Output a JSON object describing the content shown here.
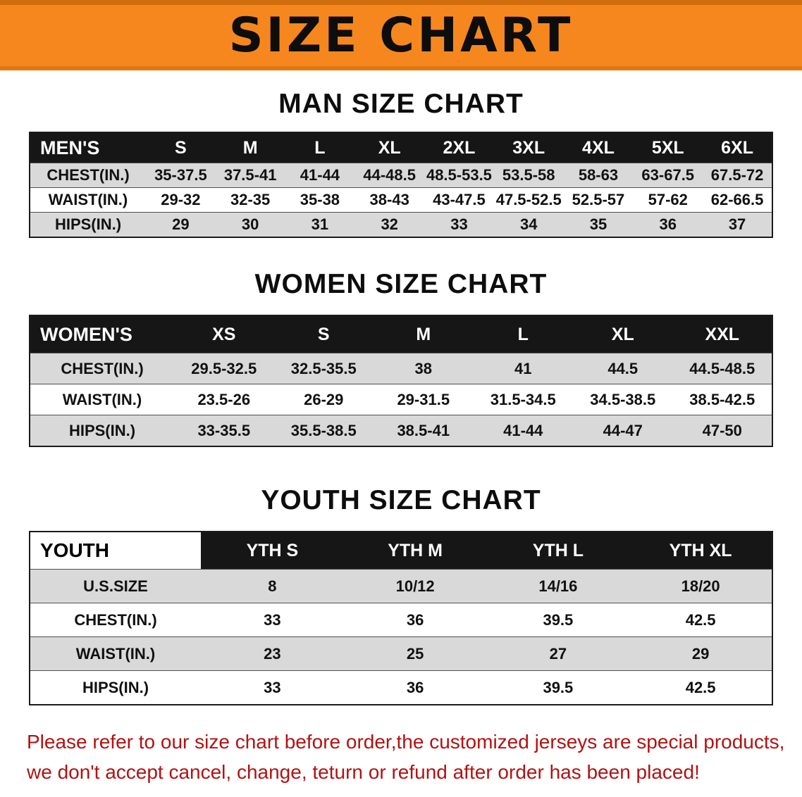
{
  "banner": {
    "title": "SIZE CHART"
  },
  "colors": {
    "banner_orange": "#f6871f",
    "table_header_black": "#161616",
    "row_gray": "#d9d9d9",
    "notice_red": "#b31212"
  },
  "sections": [
    {
      "heading": "MAN SIZE CHART",
      "table": {
        "header": [
          "MEN'S",
          "S",
          "M",
          "L",
          "XL",
          "2XL",
          "3XL",
          "4XL",
          "5XL",
          "6XL"
        ],
        "rows": [
          [
            "CHEST(IN.)",
            "35-37.5",
            "37.5-41",
            "41-44",
            "44-48.5",
            "48.5-53.5",
            "53.5-58",
            "58-63",
            "63-67.5",
            "67.5-72"
          ],
          [
            "WAIST(IN.)",
            "29-32",
            "32-35",
            "35-38",
            "38-43",
            "43-47.5",
            "47.5-52.5",
            "52.5-57",
            "57-62",
            "62-66.5"
          ],
          [
            "HIPS(IN.)",
            "29",
            "30",
            "31",
            "32",
            "33",
            "34",
            "35",
            "36",
            "37"
          ]
        ]
      }
    },
    {
      "heading": "WOMEN SIZE CHART",
      "table": {
        "header": [
          "WOMEN'S",
          "XS",
          "S",
          "M",
          "L",
          "XL",
          "XXL"
        ],
        "rows": [
          [
            "CHEST(IN.)",
            "29.5-32.5",
            "32.5-35.5",
            "38",
            "41",
            "44.5",
            "44.5-48.5"
          ],
          [
            "WAIST(IN.)",
            "23.5-26",
            "26-29",
            "29-31.5",
            "31.5-34.5",
            "34.5-38.5",
            "38.5-42.5"
          ],
          [
            "HIPS(IN.)",
            "33-35.5",
            "35.5-38.5",
            "38.5-41",
            "41-44",
            "44-47",
            "47-50"
          ]
        ]
      }
    },
    {
      "heading": "YOUTH SIZE CHART",
      "table": {
        "header": [
          "YOUTH",
          "YTH S",
          "YTH M",
          "YTH L",
          "YTH XL"
        ],
        "rows": [
          [
            "U.S.SIZE",
            "8",
            "10/12",
            "14/16",
            "18/20"
          ],
          [
            "CHEST(IN.)",
            "33",
            "36",
            "39.5",
            "42.5"
          ],
          [
            "WAIST(IN.)",
            "23",
            "25",
            "27",
            "29"
          ],
          [
            "HIPS(IN.)",
            "33",
            "36",
            "39.5",
            "42.5"
          ]
        ]
      }
    }
  ],
  "footer": {
    "lines": [
      "Please refer to our size chart before order,the customized jerseys are special products,",
      "we don't accept cancel, change, teturn or refund after order has been placed!"
    ]
  }
}
